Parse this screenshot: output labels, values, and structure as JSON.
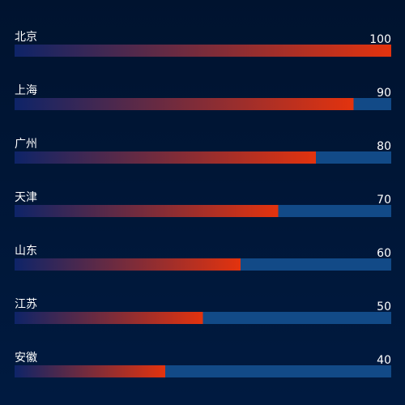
{
  "chart_data": {
    "type": "bar",
    "orientation": "horizontal",
    "categories": [
      "北京",
      "上海",
      "广州",
      "天津",
      "山东",
      "江苏",
      "安徽"
    ],
    "values": [
      100,
      90,
      80,
      70,
      60,
      50,
      40
    ],
    "xlim": [
      0,
      100
    ],
    "grid": false,
    "legend": "none",
    "colors": {
      "background": "#00132f",
      "track": "#124a87",
      "gradient_start": "#0e2468",
      "gradient_end": "#e3330e",
      "text": "#ffffff"
    }
  }
}
